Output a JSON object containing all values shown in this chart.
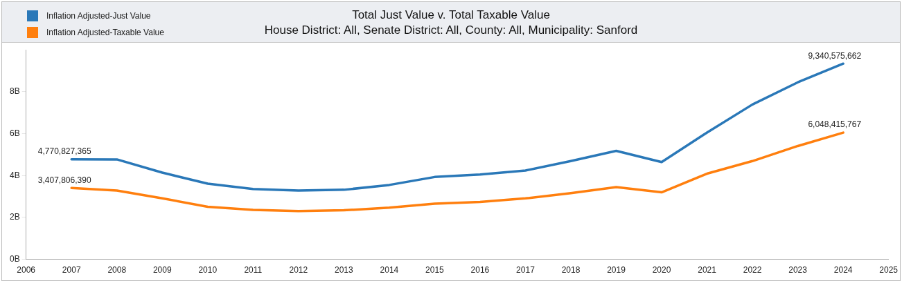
{
  "chart_data": {
    "type": "line",
    "title": "Total Just Value v. Total Taxable Value",
    "subtitle": "House District: All, Senate District: All, County: All, Municipality: Sanford",
    "x": [
      2007,
      2008,
      2009,
      2010,
      2011,
      2012,
      2013,
      2014,
      2015,
      2016,
      2017,
      2018,
      2019,
      2020,
      2021,
      2022,
      2023,
      2024
    ],
    "series": [
      {
        "name": "Inflation Adjusted-Just Value",
        "color": "#2a78b8",
        "values": [
          4770827365,
          4770000000,
          4140000000,
          3610000000,
          3360000000,
          3280000000,
          3320000000,
          3550000000,
          3930000000,
          4050000000,
          4240000000,
          4690000000,
          5180000000,
          4640000000,
          6050000000,
          7390000000,
          8450000000,
          9340575662
        ],
        "value_labels": [
          "4,770,827,365",
          null,
          null,
          null,
          null,
          null,
          null,
          null,
          null,
          null,
          null,
          null,
          null,
          null,
          null,
          null,
          null,
          "9,340,575,662"
        ]
      },
      {
        "name": "Inflation Adjusted-Taxable Value",
        "color": "#ff7f0e",
        "values": [
          3407806390,
          3280000000,
          2910000000,
          2510000000,
          2360000000,
          2300000000,
          2340000000,
          2470000000,
          2660000000,
          2740000000,
          2910000000,
          3160000000,
          3450000000,
          3200000000,
          4090000000,
          4690000000,
          5410000000,
          6048415767
        ],
        "value_labels": [
          "3,407,806,390",
          null,
          null,
          null,
          null,
          null,
          null,
          null,
          null,
          null,
          null,
          null,
          null,
          null,
          null,
          null,
          null,
          "6,048,415,767"
        ]
      }
    ],
    "xlim": [
      2006,
      2025
    ],
    "xticks": [
      2006,
      2007,
      2008,
      2009,
      2010,
      2011,
      2012,
      2013,
      2014,
      2015,
      2016,
      2017,
      2018,
      2019,
      2020,
      2021,
      2022,
      2023,
      2024,
      2025
    ],
    "ylim": [
      0,
      10000000000
    ],
    "yticks": [
      {
        "value": 0,
        "label": "0B"
      },
      {
        "value": 2000000000,
        "label": "2B"
      },
      {
        "value": 4000000000,
        "label": "4B"
      },
      {
        "value": 6000000000,
        "label": "6B"
      },
      {
        "value": 8000000000,
        "label": "8B"
      }
    ],
    "grid": false,
    "legend": "top left",
    "marker": "none",
    "line_style": "solid"
  }
}
